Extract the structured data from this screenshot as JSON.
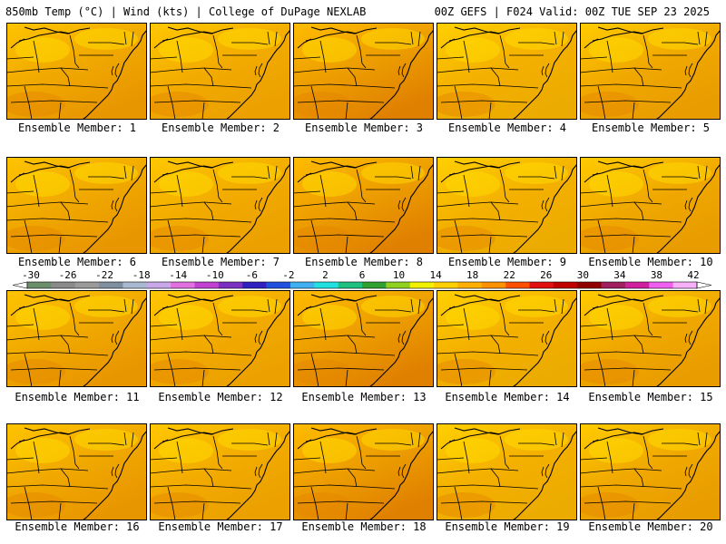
{
  "header": {
    "left": "850mb Temp (°C) | Wind (kts) | College of DuPage NEXLAB",
    "right": "00Z GEFS | F024 Valid: 00Z TUE SEP 23 2025"
  },
  "panels": [
    {
      "caption": "Ensemble Member: 1"
    },
    {
      "caption": "Ensemble Member: 2"
    },
    {
      "caption": "Ensemble Member: 3"
    },
    {
      "caption": "Ensemble Member: 4"
    },
    {
      "caption": "Ensemble Member: 5"
    },
    {
      "caption": "Ensemble Member: 6"
    },
    {
      "caption": "Ensemble Member: 7"
    },
    {
      "caption": "Ensemble Member: 8"
    },
    {
      "caption": "Ensemble Member: 9"
    },
    {
      "caption": "Ensemble Member: 10"
    },
    {
      "caption": "Ensemble Member: 11"
    },
    {
      "caption": "Ensemble Member: 12"
    },
    {
      "caption": "Ensemble Member: 13"
    },
    {
      "caption": "Ensemble Member: 14"
    },
    {
      "caption": "Ensemble Member: 15"
    },
    {
      "caption": "Ensemble Member: 16"
    },
    {
      "caption": "Ensemble Member: 17"
    },
    {
      "caption": "Ensemble Member: 18"
    },
    {
      "caption": "Ensemble Member: 19"
    },
    {
      "caption": "Ensemble Member: 20"
    }
  ],
  "color_scale": {
    "tick_labels": [
      "-30",
      "-26",
      "-22",
      "-18",
      "-14",
      "-10",
      "-6",
      "-2",
      "2",
      "6",
      "10",
      "14",
      "18",
      "22",
      "26",
      "30",
      "34",
      "38",
      "42"
    ],
    "colors": [
      "#6b8f6b",
      "#8a8a8a",
      "#9a9a9a",
      "#7f8fa0",
      "#a8b8d0",
      "#c8a8e8",
      "#e070e0",
      "#c040d0",
      "#7a30c0",
      "#3020c0",
      "#2050e0",
      "#40b0f0",
      "#20e0e0",
      "#20c080",
      "#30a030",
      "#90d020",
      "#f0f000",
      "#ffd000",
      "#ffb000",
      "#ff9000",
      "#ff5000",
      "#e01010",
      "#c00000",
      "#900000",
      "#a02060",
      "#d020a0",
      "#f060f0",
      "#f8b0f8"
    ]
  }
}
